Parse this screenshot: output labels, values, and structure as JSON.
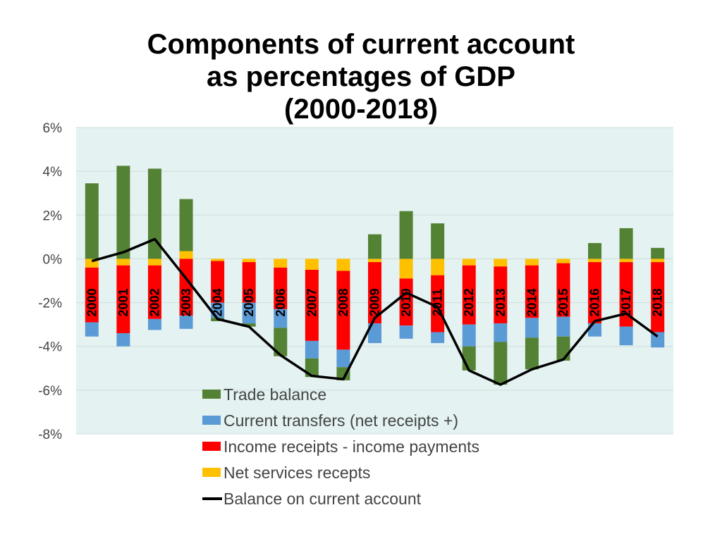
{
  "chart_data": {
    "type": "bar",
    "title_lines": [
      "Components of current account",
      "as percentages of GDP",
      "(2000-2018)"
    ],
    "xlabel": "",
    "ylabel": "",
    "ylim": [
      -8,
      6
    ],
    "yticks": [
      6,
      4,
      2,
      0,
      -2,
      -4,
      -6,
      -8
    ],
    "ytick_labels": [
      "6%",
      "4%",
      "2%",
      "0%",
      "-2%",
      "-4%",
      "-6%",
      "-8%"
    ],
    "categories": [
      "2000",
      "2001",
      "2002",
      "2003",
      "2004",
      "2005",
      "2006",
      "2007",
      "2008",
      "2009",
      "2010",
      "2011",
      "2012",
      "2013",
      "2014",
      "2015",
      "2016",
      "2017",
      "2018"
    ],
    "stacking": "positive values stack upward from 0; negative values stack downward from 0 in series order",
    "series": [
      {
        "name": "Net services recepts",
        "color": "#FFC000",
        "kind": "bar",
        "values": [
          -0.4,
          -0.3,
          -0.3,
          0.35,
          -0.1,
          -0.15,
          -0.4,
          -0.5,
          -0.55,
          -0.15,
          -0.9,
          -0.75,
          -0.3,
          -0.35,
          -0.3,
          -0.2,
          -0.15,
          -0.15,
          -0.15
        ]
      },
      {
        "name": "Income receipts - income payments",
        "color": "#FF0000",
        "kind": "bar",
        "values": [
          -2.5,
          -3.1,
          -2.45,
          -2.6,
          -1.9,
          -1.85,
          -1.9,
          -3.25,
          -3.6,
          -2.8,
          -2.15,
          -2.6,
          -2.7,
          -2.6,
          -2.4,
          -2.45,
          -2.8,
          -2.95,
          -3.2
        ]
      },
      {
        "name": "Current transfers (net receipts +)",
        "color": "#5B9BD5",
        "kind": "bar",
        "values": [
          -0.65,
          -0.6,
          -0.5,
          -0.6,
          -0.7,
          -0.95,
          -0.85,
          -0.8,
          -0.8,
          -0.9,
          -0.6,
          -0.5,
          -1.0,
          -0.85,
          -0.9,
          -0.9,
          -0.6,
          -0.85,
          -0.7
        ]
      },
      {
        "name": "Trade balance",
        "color": "#548235",
        "kind": "bar",
        "values": [
          3.45,
          4.25,
          4.12,
          2.38,
          -0.15,
          -0.15,
          -1.3,
          -0.85,
          -0.6,
          1.12,
          2.18,
          1.62,
          -1.1,
          -1.95,
          -1.45,
          -1.1,
          0.72,
          1.4,
          0.5
        ]
      },
      {
        "name": "Balance on current account",
        "color": "#000000",
        "kind": "line",
        "values": [
          -0.1,
          0.3,
          0.9,
          -0.9,
          -2.75,
          -3.1,
          -4.4,
          -5.35,
          -5.5,
          -2.7,
          -1.55,
          -2.2,
          -5.1,
          -5.75,
          -5.05,
          -4.6,
          -2.85,
          -2.5,
          -3.55
        ]
      }
    ],
    "legend_order": [
      "Trade balance",
      "Current transfers (net receipts +)",
      "Income receipts - income payments",
      "Net services recepts",
      "Balance on current account"
    ],
    "legend_position": "bottom-center",
    "plot_background": "#E4F2F2",
    "gridlines": true
  }
}
